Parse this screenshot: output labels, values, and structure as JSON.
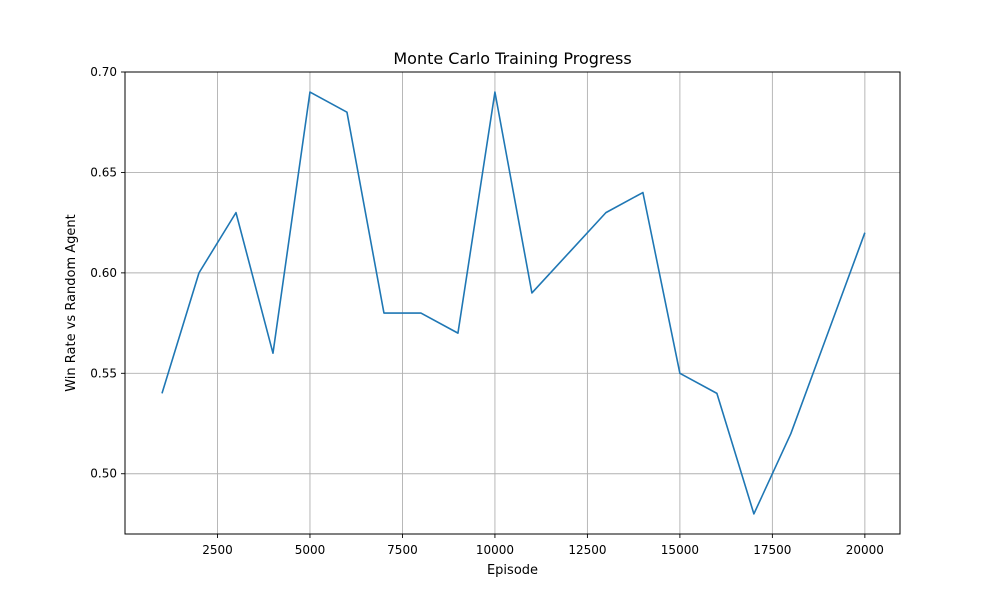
{
  "chart_data": {
    "type": "line",
    "title": "Monte Carlo Training Progress",
    "xlabel": "Episode",
    "ylabel": "Win Rate vs Random Agent",
    "xlim": [
      0,
      20950
    ],
    "ylim": [
      0.47,
      0.7
    ],
    "grid": true,
    "x_ticks": [
      2500,
      5000,
      7500,
      10000,
      12500,
      15000,
      17500,
      20000
    ],
    "y_ticks": [
      0.5,
      0.55,
      0.6,
      0.65,
      0.7
    ],
    "x_tick_labels": [
      "2500",
      "5000",
      "7500",
      "10000",
      "12500",
      "15000",
      "17500",
      "20000"
    ],
    "y_tick_labels": [
      "0.50",
      "0.55",
      "0.60",
      "0.65",
      "0.70"
    ],
    "series": [
      {
        "color": "#1f77b4",
        "x": [
          1000,
          2000,
          3000,
          4000,
          5000,
          6000,
          7000,
          8000,
          9000,
          10000,
          11000,
          12000,
          13000,
          14000,
          15000,
          16000,
          17000,
          18000,
          19000,
          20000
        ],
        "y": [
          0.54,
          0.6,
          0.63,
          0.56,
          0.69,
          0.68,
          0.58,
          0.58,
          0.57,
          0.69,
          0.59,
          0.61,
          0.63,
          0.64,
          0.55,
          0.54,
          0.48,
          0.52,
          0.57,
          0.62
        ]
      }
    ]
  }
}
